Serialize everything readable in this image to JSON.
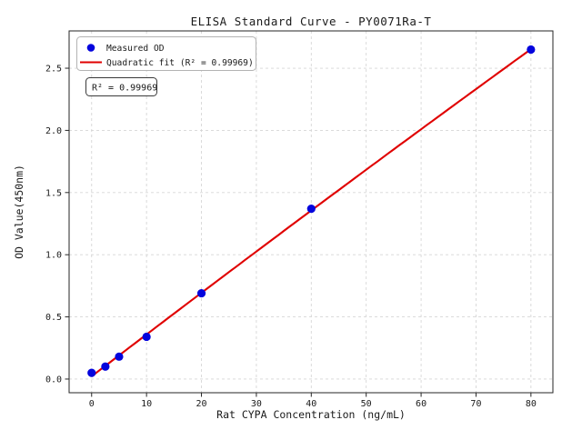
{
  "chart_data": {
    "type": "scatter",
    "title": "ELISA Standard Curve - PY0071Ra-T",
    "xlabel": "Rat CYPA Concentration (ng/mL)",
    "ylabel": "OD Value(450nm)",
    "x": [
      0,
      2.5,
      5,
      10,
      20,
      40,
      80
    ],
    "series": [
      {
        "name": "Measured OD",
        "values": [
          0.05,
          0.1,
          0.18,
          0.34,
          0.69,
          1.37,
          2.65
        ]
      }
    ],
    "fit": {
      "name": "Quadratic fit",
      "kind": "quadratic",
      "r_squared": "0.99969",
      "x_start": 0,
      "x_end": 80
    },
    "xlim": [
      -4.1,
      84.0
    ],
    "ylim": [
      -0.11,
      2.8
    ],
    "xticks": [
      "0",
      "10",
      "20",
      "30",
      "40",
      "50",
      "60",
      "70",
      "80"
    ],
    "yticks": [
      "0.0",
      "0.5",
      "1.0",
      "1.5",
      "2.0",
      "2.5"
    ],
    "grid": true,
    "legend": {
      "position": "upper left",
      "entries": [
        {
          "marker": "point",
          "label": "Measured OD"
        },
        {
          "marker": "line",
          "label": "Quadratic fit (R² = 0.99969)"
        }
      ]
    },
    "annotation": "R² = 0.99969",
    "colors": {
      "point": "#0404dd",
      "line": "#e00000",
      "grid": "#d6d6d6",
      "axis": "#262626",
      "legend_border": "#b3b3b3",
      "annotation_border": "#3a3a3a"
    }
  }
}
